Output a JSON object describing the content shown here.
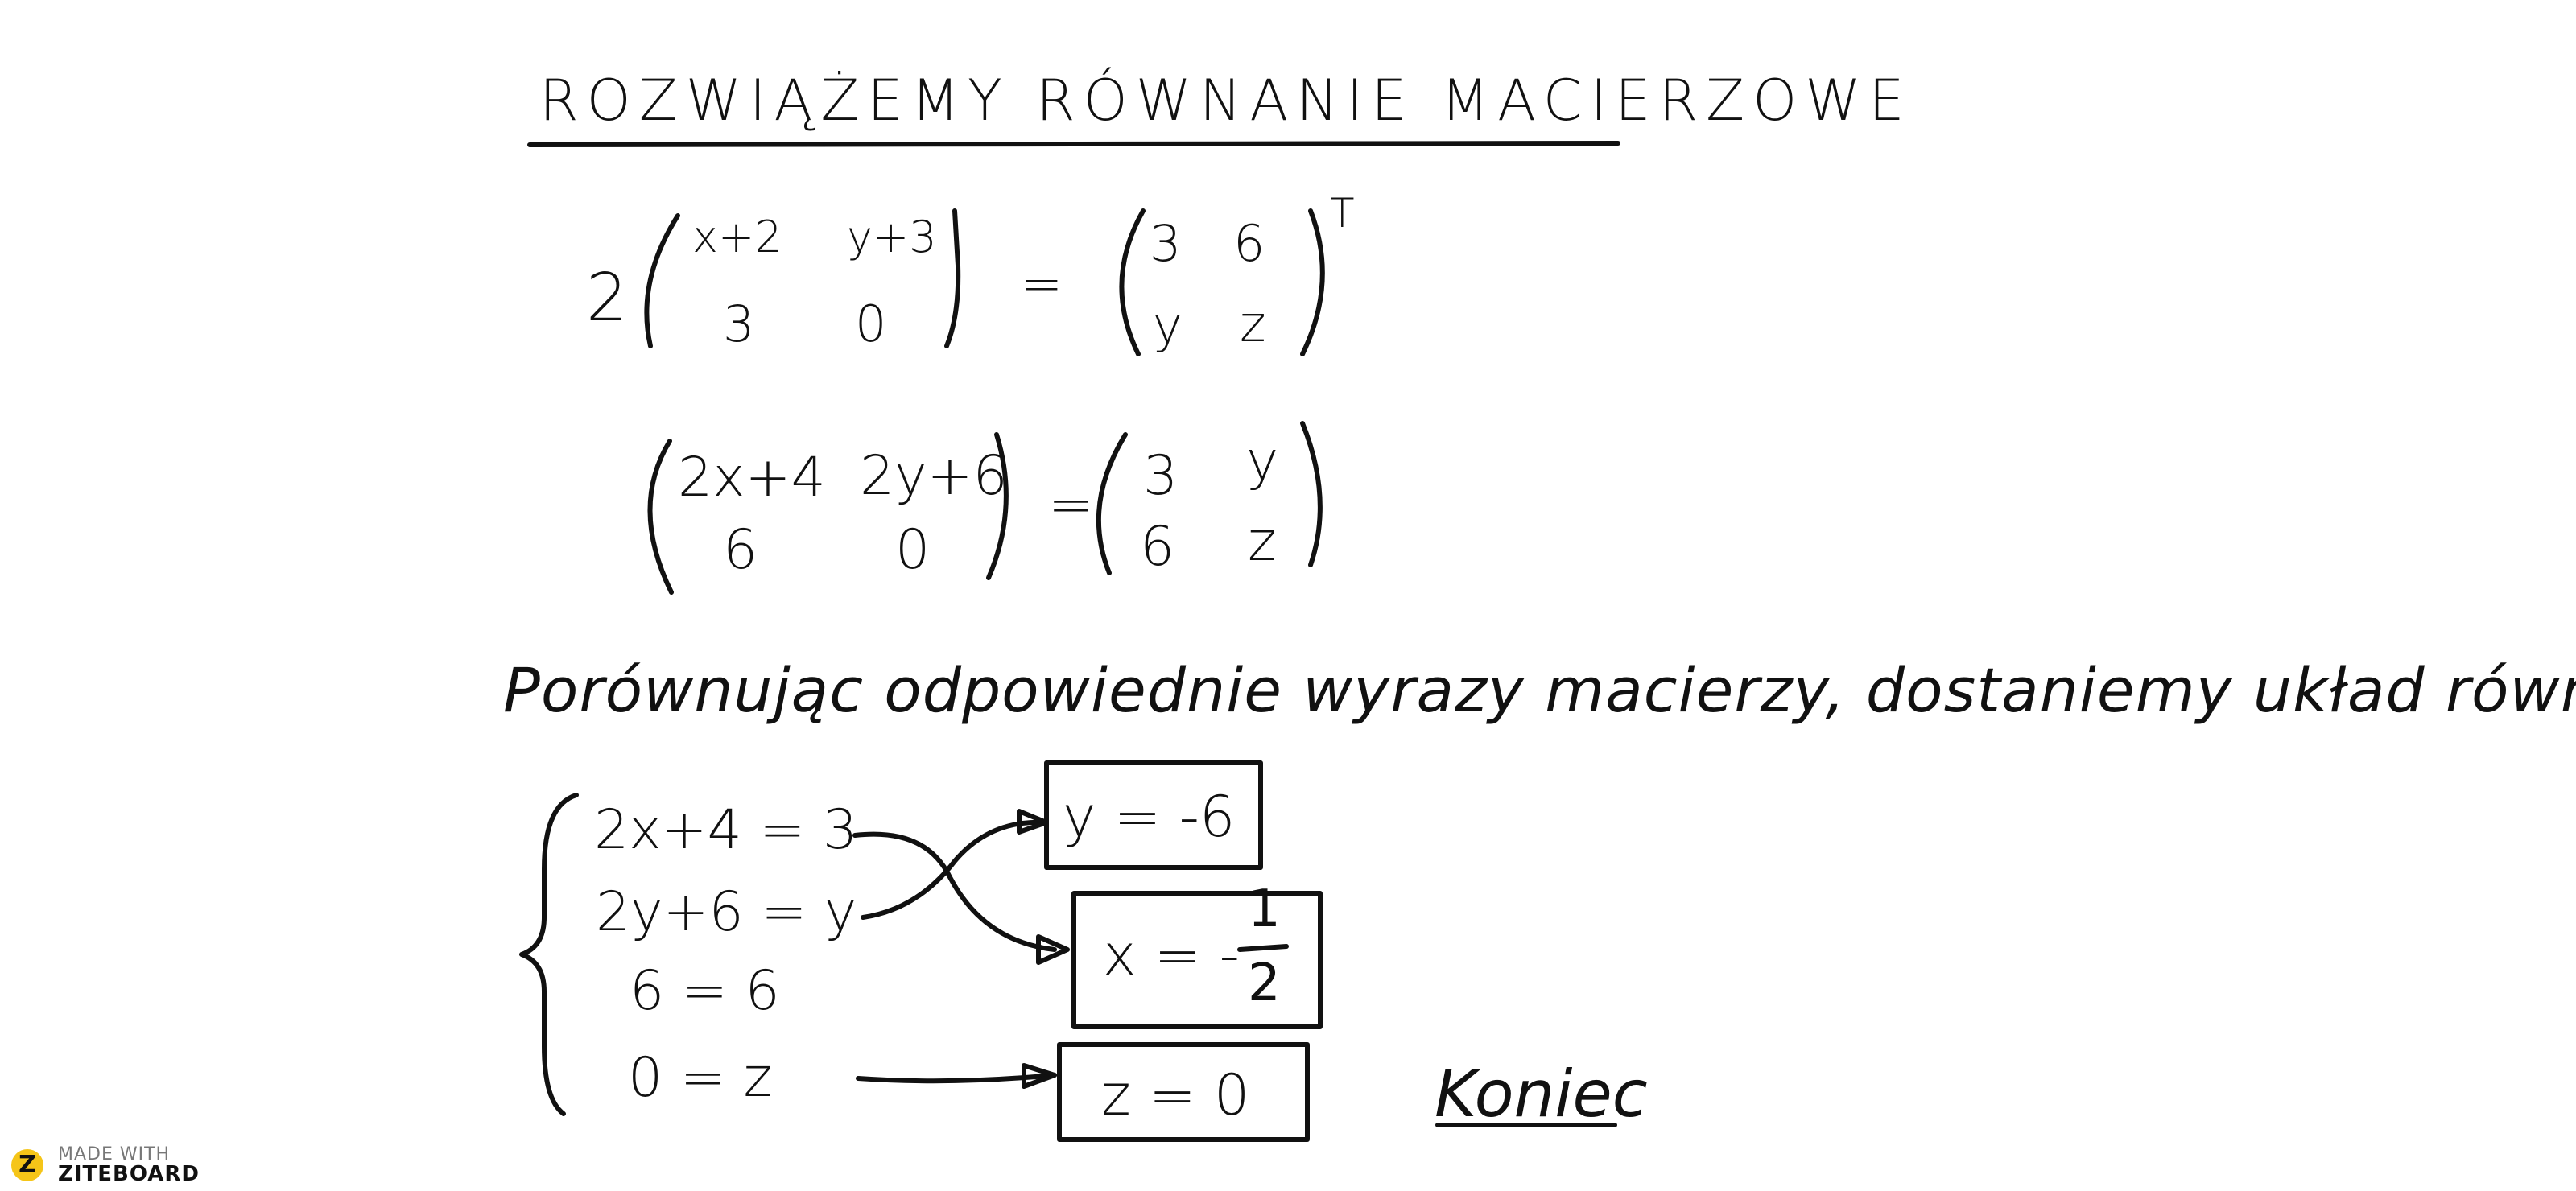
{
  "title": "ROZWIĄŻEMY RÓWNANIE MACIERZOWE",
  "equation1": {
    "scalar": "2",
    "left": {
      "a11": "x+2",
      "a12": "y+3",
      "a21": "3",
      "a22": "0"
    },
    "equals": "=",
    "right": {
      "a11": "3",
      "a12": "6",
      "a21": "y",
      "a22": "z"
    },
    "transpose": "T"
  },
  "equation2": {
    "left": {
      "a11": "2x+4",
      "a12": "2y+6",
      "a21": "6",
      "a22": "0"
    },
    "equals": "=",
    "right": {
      "a11": "3",
      "a12": "y",
      "a21": "6",
      "a22": "z"
    }
  },
  "sentence": "Porównując odpowiednie wyrazy macierzy, dostaniemy układ równań:",
  "system": [
    "2x+4 = 3",
    "2y+6 = y",
    "6 = 6",
    "0 = z"
  ],
  "solutions": {
    "y": "y = -6",
    "x_prefix": "x = -",
    "x_num": "1",
    "x_den": "2",
    "z": "z = 0"
  },
  "end": "Koniec",
  "branding": {
    "line1": "MADE WITH",
    "line2": "ZITEBOARD",
    "badge": "Z"
  }
}
